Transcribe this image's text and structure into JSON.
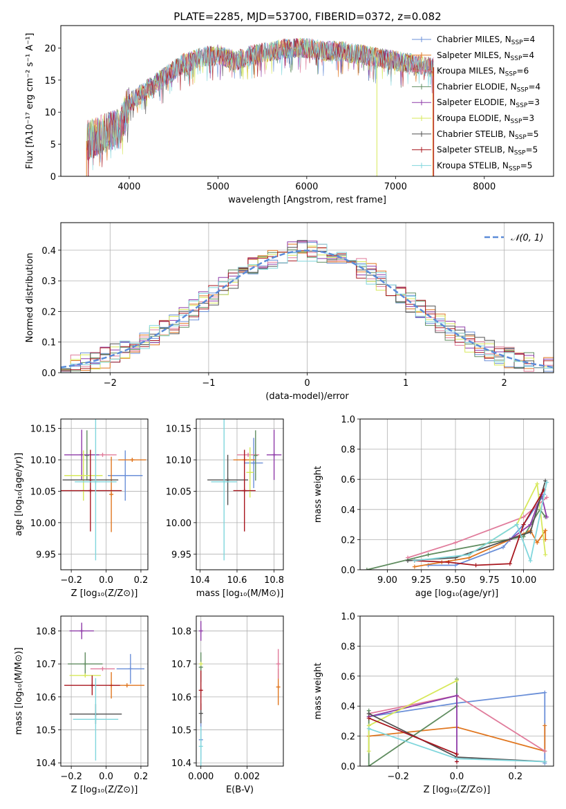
{
  "figure_title": "PLATE=2285, MJD=53700, FIBERID=0372, z=0.082",
  "series_colors": [
    "#6a8fd8",
    "#e0761f",
    "#e07b9b",
    "#5f8c5f",
    "#8e3aa8",
    "#d7e85a",
    "#505050",
    "#a8161e",
    "#7fd6dc"
  ],
  "chart_data": [
    {
      "id": "spectrum",
      "type": "line",
      "title": "PLATE=2285, MJD=53700, FIBERID=0372, z=0.082",
      "xlabel": "wavelength [Angstrom, rest frame]",
      "ylabel": "Flux [fλ10⁻¹⁷ erg cm⁻² s⁻¹ A⁻¹]",
      "xlim": [
        3230,
        8780
      ],
      "ylim": [
        0,
        23.5
      ],
      "xticks": [
        4000,
        5000,
        6000,
        7000,
        8000
      ],
      "yticks": [
        0,
        5,
        10,
        15,
        20
      ],
      "grid": false,
      "legend": "upper right",
      "legend_entries": [
        {
          "label": "Chabrier MILES, N",
          "sub": "SSP",
          "tail": "=4",
          "color": "#6a8fd8"
        },
        {
          "label": "Salpeter MILES, N",
          "sub": "SSP",
          "tail": "=4",
          "color": "#e0761f"
        },
        {
          "label": "Kroupa MILES, N",
          "sub": "SSP",
          "tail": "=6",
          "color": "#e07b9b"
        },
        {
          "label": "Chabrier ELODIE, N",
          "sub": "SSP",
          "tail": "=4",
          "color": "#5f8c5f"
        },
        {
          "label": "Salpeter ELODIE, N",
          "sub": "SSP",
          "tail": "=3",
          "color": "#8e3aa8"
        },
        {
          "label": "Kroupa ELODIE, N",
          "sub": "SSP",
          "tail": "=3",
          "color": "#d7e85a"
        },
        {
          "label": "Chabrier STELIB, N",
          "sub": "SSP",
          "tail": "=5",
          "color": "#505050"
        },
        {
          "label": "Salpeter STELIB, N",
          "sub": "SSP",
          "tail": "=5",
          "color": "#a8161e"
        },
        {
          "label": "Kroupa STELIB, N",
          "sub": "SSP",
          "tail": "=5",
          "color": "#7fd6dc"
        }
      ],
      "envelope_x": [
        3520,
        3700,
        3900,
        4000,
        4200,
        4400,
        4600,
        4800,
        5000,
        5200,
        5400,
        5600,
        5800,
        6000,
        6200,
        6400,
        6600,
        6800,
        7000,
        7200,
        7400
      ],
      "envelope_y": [
        5.5,
        6.5,
        7.5,
        11.5,
        13.5,
        15.5,
        17.5,
        18.5,
        19.0,
        18.0,
        19.0,
        19.5,
        20.0,
        20.0,
        19.5,
        19.5,
        19.0,
        18.5,
        18.0,
        17.5,
        17.0
      ]
    },
    {
      "id": "residuals",
      "type": "area",
      "xlabel": "(data-model)/error",
      "ylabel": "Normed distribution",
      "xlim": [
        -2.5,
        2.5
      ],
      "ylim": [
        0,
        0.49
      ],
      "xticks": [
        -2,
        -1,
        0,
        1,
        2
      ],
      "yticks": [
        0.0,
        0.1,
        0.2,
        0.3,
        0.4
      ],
      "grid": true,
      "legend": "upper right",
      "reference_label": "𝒩(0, 1)",
      "reference_color": "#5b8bd8",
      "bin_width": 0.1
    },
    {
      "id": "age_vs_Z",
      "type": "scatter",
      "xlabel": "Z [log₁₀(Z/Z⊙)]",
      "ylabel": "age  [log₁₀(age/yr)]",
      "xlim": [
        -0.26,
        0.24
      ],
      "ylim": [
        9.925,
        10.165
      ],
      "xticks": [
        -0.2,
        0.0,
        0.2
      ],
      "yticks": [
        9.95,
        10.0,
        10.05,
        10.1,
        10.15
      ],
      "grid": true,
      "points": [
        {
          "x": 0.11,
          "y": 10.075,
          "xerr": 0.1,
          "yerr": 0.04,
          "color": "#6a8fd8"
        },
        {
          "x": 0.15,
          "y": 10.1,
          "xerr": 0.08,
          "yerr": 0.0,
          "color": "#e0761f"
        },
        {
          "x": 0.03,
          "y": 10.045,
          "xerr": 0.0,
          "yerr": 0.06,
          "color": "#e0761f"
        },
        {
          "x": -0.02,
          "y": 10.108,
          "xerr": 0.08,
          "yerr": 0.0,
          "color": "#e07b9b"
        },
        {
          "x": -0.11,
          "y": 10.107,
          "xerr": 0.0,
          "yerr": 0.04,
          "color": "#5f8c5f"
        },
        {
          "x": -0.14,
          "y": 10.108,
          "xerr": 0.1,
          "yerr": 0.04,
          "color": "#8e3aa8"
        },
        {
          "x": -0.13,
          "y": 10.075,
          "xerr": 0.11,
          "yerr": 0.04,
          "color": "#d7e85a"
        },
        {
          "x": -0.09,
          "y": 10.068,
          "xerr": 0.16,
          "yerr": 0.0,
          "color": "#505050"
        },
        {
          "x": -0.09,
          "y": 10.051,
          "xerr": 0.18,
          "yerr": 0.065,
          "color": "#a8161e"
        },
        {
          "x": -0.06,
          "y": 10.065,
          "xerr": 0.12,
          "yerr": 0.125,
          "color": "#7fd6dc"
        }
      ]
    },
    {
      "id": "age_vs_mass",
      "type": "scatter",
      "xlabel": "mass [log₁₀(M/M⊙)]",
      "ylabel": "",
      "xlim": [
        10.38,
        10.85
      ],
      "ylim": [
        9.925,
        10.165
      ],
      "xticks": [
        10.4,
        10.6,
        10.8
      ],
      "yticks": [
        9.95,
        10.0,
        10.05,
        10.1,
        10.15
      ],
      "grid": true,
      "points": [
        {
          "x": 10.69,
          "y": 10.095,
          "xerr": 0.05,
          "yerr": 0.04,
          "color": "#6a8fd8"
        },
        {
          "x": 10.64,
          "y": 10.1,
          "xerr": 0.06,
          "yerr": 0.0,
          "color": "#e0761f"
        },
        {
          "x": 10.66,
          "y": 10.108,
          "xerr": 0.06,
          "yerr": 0.0,
          "color": "#e07b9b"
        },
        {
          "x": 10.7,
          "y": 10.107,
          "xerr": 0.0,
          "yerr": 0.04,
          "color": "#5f8c5f"
        },
        {
          "x": 10.8,
          "y": 10.108,
          "xerr": 0.04,
          "yerr": 0.04,
          "color": "#8e3aa8"
        },
        {
          "x": 10.67,
          "y": 10.08,
          "xerr": 0.02,
          "yerr": 0.04,
          "color": "#d7e85a"
        },
        {
          "x": 10.55,
          "y": 10.068,
          "xerr": 0.11,
          "yerr": 0.04,
          "color": "#505050"
        },
        {
          "x": 10.64,
          "y": 10.051,
          "xerr": 0.06,
          "yerr": 0.065,
          "color": "#a8161e"
        },
        {
          "x": 10.53,
          "y": 10.065,
          "xerr": 0.07,
          "yerr": 0.125,
          "color": "#7fd6dc"
        }
      ]
    },
    {
      "id": "mass_weight_vs_age",
      "type": "line",
      "xlabel": "age  [log₁₀(age/yr)]",
      "ylabel": "mass weight",
      "xlim": [
        8.8,
        10.22
      ],
      "ylim": [
        0,
        1.0
      ],
      "xticks": [
        9.0,
        9.25,
        9.5,
        9.75,
        10.0
      ],
      "yticks": [
        0.0,
        0.2,
        0.4,
        0.6,
        0.8,
        1.0
      ],
      "grid": true,
      "series": [
        {
          "color": "#6a8fd8",
          "x": [
            9.3,
            9.5,
            9.85,
            10.0,
            10.15
          ],
          "y": [
            0.03,
            0.03,
            0.15,
            0.3,
            0.5
          ]
        },
        {
          "color": "#e0761f",
          "x": [
            9.2,
            9.4,
            9.6,
            9.9,
            10.05,
            10.1,
            10.16,
            10.16
          ],
          "y": [
            0.02,
            0.05,
            0.08,
            0.2,
            0.26,
            0.18,
            0.26,
            0.2
          ]
        },
        {
          "color": "#e07b9b",
          "x": [
            9.15,
            9.5,
            10.0,
            10.17
          ],
          "y": [
            0.08,
            0.18,
            0.35,
            0.48
          ]
        },
        {
          "color": "#5f8c5f",
          "x": [
            8.85,
            9.3,
            10.0,
            10.12,
            10.16
          ],
          "y": [
            0.0,
            0.1,
            0.22,
            0.4,
            0.35
          ]
        },
        {
          "color": "#8e3aa8",
          "x": [
            9.9,
            10.05,
            10.13,
            10.17
          ],
          "y": [
            0.2,
            0.3,
            0.5,
            0.35
          ]
        },
        {
          "color": "#d7e85a",
          "x": [
            9.6,
            9.95,
            10.1,
            10.16
          ],
          "y": [
            0.1,
            0.3,
            0.57,
            0.1
          ]
        },
        {
          "color": "#505050",
          "x": [
            9.15,
            9.5,
            10.05,
            10.16
          ],
          "y": [
            0.06,
            0.08,
            0.25,
            0.59
          ]
        },
        {
          "color": "#a8161e",
          "x": [
            9.2,
            9.45,
            9.65,
            9.9,
            10.0,
            10.15
          ],
          "y": [
            0.06,
            0.05,
            0.03,
            0.04,
            0.3,
            0.53
          ]
        },
        {
          "color": "#7fd6dc",
          "x": [
            9.2,
            9.6,
            9.95,
            10.05,
            10.17
          ],
          "y": [
            0.06,
            0.1,
            0.3,
            0.06,
            0.58
          ]
        }
      ]
    },
    {
      "id": "mass_vs_Z",
      "type": "scatter",
      "xlabel": "Z [log₁₀(Z/Z⊙)]",
      "ylabel": "mass [log₁₀(M/M⊙)]",
      "xlim": [
        -0.26,
        0.24
      ],
      "ylim": [
        10.39,
        10.845
      ],
      "xticks": [
        -0.2,
        0.0,
        0.2
      ],
      "yticks": [
        10.4,
        10.5,
        10.6,
        10.7,
        10.8
      ],
      "grid": true,
      "points": [
        {
          "x": 0.14,
          "y": 10.685,
          "xerr": 0.08,
          "yerr": 0.045,
          "color": "#6a8fd8"
        },
        {
          "x": 0.03,
          "y": 10.635,
          "xerr": 0.0,
          "yerr": 0.04,
          "color": "#e0761f"
        },
        {
          "x": 0.12,
          "y": 10.635,
          "xerr": 0.1,
          "yerr": 0.0,
          "color": "#e0761f"
        },
        {
          "x": -0.02,
          "y": 10.685,
          "xerr": 0.07,
          "yerr": 0.0,
          "color": "#e07b9b"
        },
        {
          "x": -0.12,
          "y": 10.7,
          "xerr": 0.1,
          "yerr": 0.035,
          "color": "#5f8c5f"
        },
        {
          "x": -0.14,
          "y": 10.8,
          "xerr": 0.07,
          "yerr": 0.025,
          "color": "#8e3aa8"
        },
        {
          "x": -0.12,
          "y": 10.665,
          "xerr": 0.09,
          "yerr": 0.0,
          "color": "#d7e85a"
        },
        {
          "x": -0.06,
          "y": 10.548,
          "xerr": 0.15,
          "yerr": 0.03,
          "color": "#505050"
        },
        {
          "x": -0.08,
          "y": 10.635,
          "xerr": 0.16,
          "yerr": 0.03,
          "color": "#a8161e"
        },
        {
          "x": -0.06,
          "y": 10.532,
          "xerr": 0.13,
          "yerr": 0.125,
          "color": "#7fd6dc"
        }
      ]
    },
    {
      "id": "mass_vs_EBV",
      "type": "scatter",
      "xlabel": "E(B-V)",
      "ylabel": "",
      "xlim": [
        -0.0002,
        0.00357
      ],
      "ylim": [
        10.39,
        10.845
      ],
      "xticks": [
        0.0,
        0.002
      ],
      "xtick_labels": [
        "0.000",
        "0.002"
      ],
      "yticks": [
        10.4,
        10.5,
        10.6,
        10.7,
        10.8
      ],
      "grid": true,
      "points": [
        {
          "x": 0.0,
          "y": 10.47,
          "xerr": 0.0,
          "yerr": 0.06,
          "color": "#6a8fd8"
        },
        {
          "x": 0.00335,
          "y": 10.63,
          "xerr": 0.0,
          "yerr": 0.055,
          "color": "#e0761f"
        },
        {
          "x": 0.00335,
          "y": 10.7,
          "xerr": 0.0,
          "yerr": 0.045,
          "color": "#e07b9b"
        },
        {
          "x": 0.0,
          "y": 10.69,
          "xerr": 0.0,
          "yerr": 0.045,
          "color": "#5f8c5f"
        },
        {
          "x": 0.0,
          "y": 10.8,
          "xerr": 0.0,
          "yerr": 0.03,
          "color": "#8e3aa8"
        },
        {
          "x": 0.0,
          "y": 10.7,
          "xerr": 0.0,
          "yerr": 0.0,
          "color": "#d7e85a"
        },
        {
          "x": 0.0,
          "y": 10.55,
          "xerr": 0.0,
          "yerr": 0.03,
          "color": "#505050"
        },
        {
          "x": 0.0,
          "y": 10.62,
          "xerr": 0.0,
          "yerr": 0.06,
          "color": "#a8161e"
        },
        {
          "x": 0.0,
          "y": 10.45,
          "xerr": 0.0,
          "yerr": 0.06,
          "color": "#7fd6dc"
        }
      ]
    },
    {
      "id": "mass_weight_vs_Z",
      "type": "line",
      "xlabel": "Z [log₁₀(Z/Z⊙)]",
      "ylabel": "mass weight",
      "xlim": [
        -0.33,
        0.33
      ],
      "ylim": [
        0,
        1.0
      ],
      "xticks": [
        -0.2,
        0.0,
        0.2
      ],
      "yticks": [
        0.0,
        0.2,
        0.4,
        0.6,
        0.8,
        1.0
      ],
      "grid": true,
      "series": [
        {
          "color": "#6a8fd8",
          "x": [
            -0.3,
            0.0,
            0.3,
            0.3
          ],
          "y": [
            0.33,
            0.42,
            0.49,
            0.02
          ]
        },
        {
          "color": "#e0761f",
          "x": [
            -0.3,
            0.0,
            0.3,
            0.3
          ],
          "y": [
            0.2,
            0.26,
            0.1,
            0.27
          ]
        },
        {
          "color": "#e07b9b",
          "x": [
            -0.3,
            0.0,
            0.3
          ],
          "y": [
            0.35,
            0.47,
            0.1
          ]
        },
        {
          "color": "#5f8c5f",
          "x": [
            -0.3,
            -0.3,
            0.0,
            0.0
          ],
          "y": [
            0.37,
            0.0,
            0.4,
            0.58
          ]
        },
        {
          "color": "#8e3aa8",
          "x": [
            -0.3,
            0.0,
            0.0
          ],
          "y": [
            0.33,
            0.47,
            0.03
          ]
        },
        {
          "color": "#d7e85a",
          "x": [
            -0.3,
            -0.3,
            0.0
          ],
          "y": [
            0.1,
            0.27,
            0.57
          ]
        },
        {
          "color": "#505050",
          "x": [
            -0.3,
            0.0,
            0.3
          ],
          "y": [
            0.35,
            0.06,
            0.03
          ]
        },
        {
          "color": "#a8161e",
          "x": [
            -0.3,
            0.0,
            0.0
          ],
          "y": [
            0.32,
            0.08,
            0.03
          ]
        },
        {
          "color": "#7fd6dc",
          "x": [
            -0.3,
            0.0,
            0.3
          ],
          "y": [
            0.25,
            0.05,
            0.03
          ]
        }
      ]
    }
  ]
}
